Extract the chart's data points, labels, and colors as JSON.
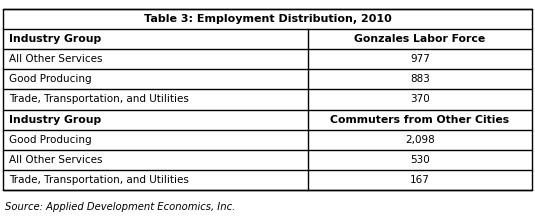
{
  "title": "Table 3: Employment Distribution, 2010",
  "col1_header": "Industry Group",
  "col2_header_1": "Gonzales Labor Force",
  "col2_header_2": "Commuters from Other Cities",
  "section1_rows": [
    [
      "All Other Services",
      "977"
    ],
    [
      "Good Producing",
      "883"
    ],
    [
      "Trade, Transportation, and Utilities",
      "370"
    ]
  ],
  "section2_rows": [
    [
      "Good Producing",
      "2,098"
    ],
    [
      "All Other Services",
      "530"
    ],
    [
      "Trade, Transportation, and Utilities",
      "167"
    ]
  ],
  "source": "Source: Applied Development Economics, Inc.",
  "bg_color": "#ffffff",
  "title_fontsize": 8.0,
  "header_fontsize": 7.8,
  "data_fontsize": 7.5,
  "source_fontsize": 7.2,
  "col_split": 0.575
}
